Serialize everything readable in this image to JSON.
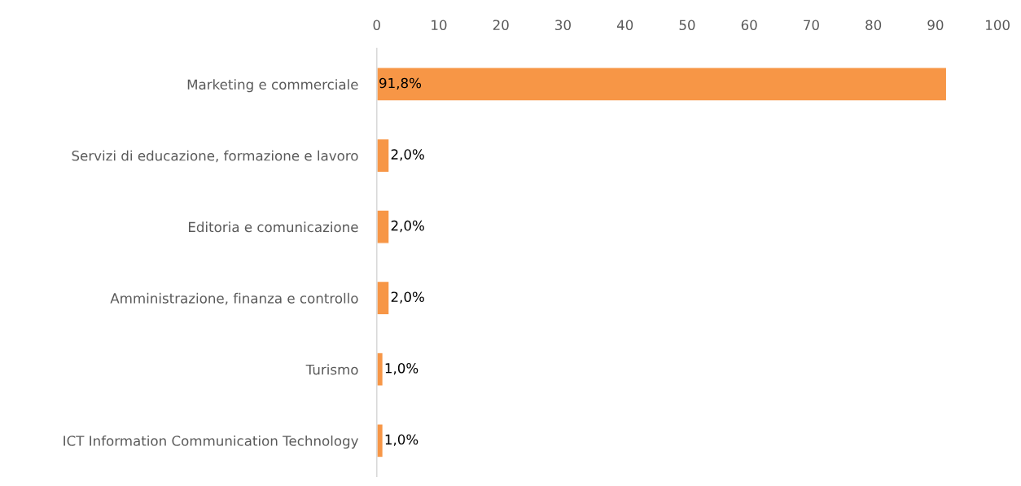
{
  "chart_data": {
    "type": "bar",
    "orientation": "horizontal",
    "categories": [
      "Marketing e commerciale",
      "Servizi di educazione, formazione e lavoro",
      "Editoria e comunicazione",
      "Amministrazione, finanza e controllo",
      "Turismo",
      "ICT Information Communication Technology"
    ],
    "values": [
      91.8,
      2.0,
      2.0,
      2.0,
      1.0,
      1.0
    ],
    "value_labels": [
      "91,8%",
      "2,0%",
      "2,0%",
      "2,0%",
      "1,0%",
      "1,0%"
    ],
    "color": "#f79646",
    "xlim": [
      0,
      100
    ],
    "xticks": [
      0,
      10,
      20,
      30,
      40,
      50,
      60,
      70,
      80,
      90,
      100
    ],
    "grid": false,
    "legend": false
  }
}
